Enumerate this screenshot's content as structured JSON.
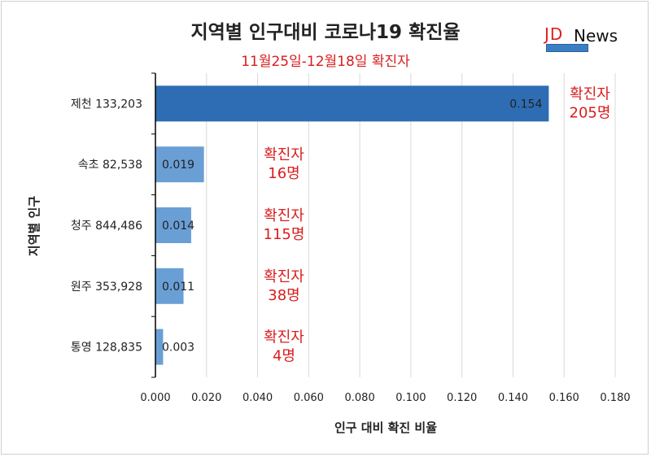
{
  "header": {
    "title": "지역별 인구대비 코로나19 확진율",
    "subtitle": "11월25일-12월18일 확진자",
    "brand_jd": "JD",
    "brand_news": "News"
  },
  "chart_data": {
    "type": "bar",
    "orientation": "horizontal",
    "title": "지역별 인구대비 코로나19 확진율",
    "subtitle": "11월25일-12월18일 확진자",
    "xlabel": "인구 대비 확진 비율",
    "ylabel": "지역별 인구",
    "xlim": [
      0,
      0.18
    ],
    "x_ticks": [
      "0.000",
      "0.020",
      "0.040",
      "0.060",
      "0.080",
      "0.100",
      "0.120",
      "0.140",
      "0.160",
      "0.180"
    ],
    "grid": true,
    "categories": [
      "제천 133,203",
      "속초 82,538",
      "청주 844,486",
      "원주 353,928",
      "통영 128,835"
    ],
    "values": [
      0.154,
      0.019,
      0.014,
      0.011,
      0.003
    ],
    "value_labels": [
      "0.154",
      "0.019",
      "0.014",
      "0.011",
      "0.003"
    ],
    "annotations": [
      {
        "line1": "확진자",
        "line2": "205명"
      },
      {
        "line1": "확진자",
        "line2": "16명"
      },
      {
        "line1": "확진자",
        "line2": "115명"
      },
      {
        "line1": "확진자",
        "line2": "38명"
      },
      {
        "line1": "확진자",
        "line2": "4명"
      }
    ],
    "colors": {
      "highlight": "#2e6db3",
      "bar": "#6a9fd6",
      "annotation": "#d91d1d"
    }
  }
}
